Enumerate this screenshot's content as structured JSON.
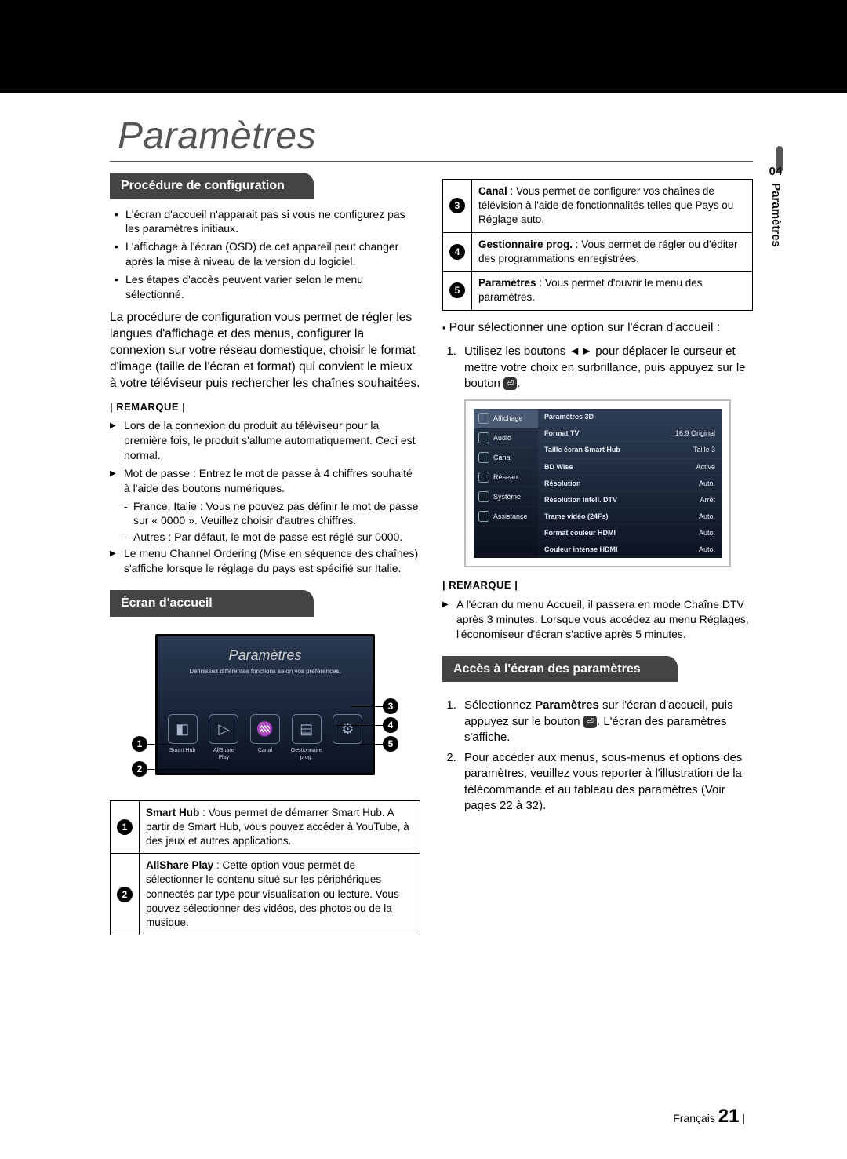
{
  "chapter_title": "Paramètres",
  "side_tab": {
    "num": "04",
    "label": "Paramètres"
  },
  "left": {
    "sec1_title": "Procédure de configuration",
    "bullets": [
      "L'écran d'accueil n'apparait pas si vous ne configurez pas les paramètres initiaux.",
      "L'affichage à l'écran (OSD) de cet appareil peut changer après la mise à niveau de la version du logiciel.",
      "Les étapes d'accès peuvent varier selon le menu sélectionné."
    ],
    "para": "La procédure de configuration vous permet de régler les langues d'affichage et des menus, configurer la connexion sur votre réseau domestique, choisir le format d'image (taille de l'écran et format) qui convient le mieux à votre téléviseur puis rechercher les chaînes souhaitées.",
    "remarque": "| REMARQUE |",
    "notes": [
      "Lors de la connexion du produit au téléviseur pour la première fois, le produit s'allume automatiquement. Ceci est normal.",
      "Mot de passe : Entrez le mot de passe à 4 chiffres souhaité à l'aide des boutons numériques."
    ],
    "sub": [
      "France, Italie : Vous ne pouvez pas définir le mot de passe sur « 0000 ». Veuillez choisir d'autres chiffres.",
      "Autres : Par défaut, le mot de passe est réglé sur 0000."
    ],
    "note_last": "Le menu Channel Ordering (Mise en séquence des chaînes) s'affiche lorsque le réglage du pays est spécifié sur Italie.",
    "sec2_title": "Écran d'accueil",
    "home_screen": {
      "title": "Paramètres",
      "sub": "Définissez différentes fonctions selon vos préférences.",
      "icons": [
        {
          "glyph": "◧",
          "label": "Smart Hub"
        },
        {
          "glyph": "▷",
          "label": "AllShare Play"
        },
        {
          "glyph": "♒",
          "label": "Canal"
        },
        {
          "glyph": "▤",
          "label": "Gestionnaire prog."
        },
        {
          "glyph": "⚙",
          "label": ""
        }
      ]
    },
    "table": [
      {
        "n": "1",
        "bold": "Smart Hub",
        "text": " : Vous permet de démarrer Smart Hub. A partir de Smart Hub, vous pouvez accéder à YouTube, à des jeux et autres applications."
      },
      {
        "n": "2",
        "bold": "AllShare Play",
        "text": " : Cette option vous permet de sélectionner le contenu situé sur les périphériques connectés par type pour visualisation ou lecture. Vous pouvez sélectionner des vidéos, des photos ou de la musique."
      }
    ]
  },
  "right": {
    "table": [
      {
        "n": "3",
        "bold": "Canal",
        "text": " : Vous permet de configurer vos chaînes de télévision à l'aide de fonctionnalités telles que Pays ou Réglage auto."
      },
      {
        "n": "4",
        "bold": "Gestionnaire prog.",
        "text": " : Vous permet de régler ou d'éditer des programmations enregistrées."
      },
      {
        "n": "5",
        "bold": "Paramètres",
        "text": " : Vous permet d'ouvrir le menu des paramètres."
      }
    ],
    "select_head": "Pour sélectionner une option sur l'écran d'accueil :",
    "step1a": "Utilisez les boutons ◄► pour déplacer le curseur et mettre votre choix en surbrillance, puis appuyez sur le bouton ",
    "step1b": ".",
    "settings_shot": {
      "side": [
        {
          "label": "Affichage",
          "sel": true
        },
        {
          "label": "Audio"
        },
        {
          "label": "Canal"
        },
        {
          "label": "Réseau"
        },
        {
          "label": "Système"
        },
        {
          "label": "Assistance"
        }
      ],
      "rows": [
        [
          "Paramètres 3D",
          ""
        ],
        [
          "Format TV",
          "16:9 Original"
        ],
        [
          "Taille écran Smart Hub",
          "Taille 3"
        ],
        [
          "BD Wise",
          "Activé"
        ],
        [
          "Résolution",
          "Auto."
        ],
        [
          "Résolution intell. DTV",
          "Arrêt"
        ],
        [
          "Trame vidéo (24Fs)",
          "Auto."
        ],
        [
          "Format couleur HDMI",
          "Auto."
        ],
        [
          "Couleur intense HDMI",
          "Auto."
        ]
      ]
    },
    "remarque": "| REMARQUE |",
    "note": "A l'écran du menu Accueil, il passera en mode Chaîne DTV après 3 minutes. Lorsque vous accédez au menu Réglages, l'économiseur d'écran s'active après 5 minutes.",
    "sec3_title": "Accès à l'écran des paramètres",
    "steps": [
      {
        "a": "Sélectionnez ",
        "b": "Paramètres",
        "c": " sur l'écran d'accueil, puis appuyez sur le bouton ",
        "d": ". L'écran des paramètres s'affiche."
      },
      {
        "text": "Pour accéder aux menus, sous-menus et options des paramètres, veuillez vous reporter à l'illustration de la télécommande et au tableau des paramètres (Voir pages 22 à 32)."
      }
    ]
  },
  "footer": {
    "lang": "Français",
    "page": "21",
    "bar": "|"
  }
}
